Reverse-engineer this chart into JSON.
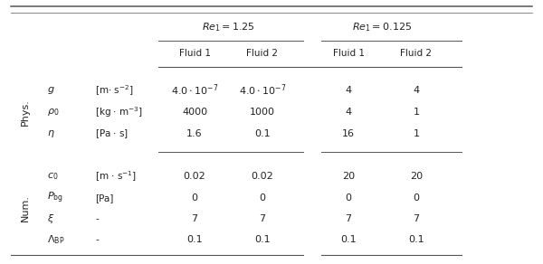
{
  "re1_header": "$\\mathit{Re}_1 = 1.25$",
  "re2_header": "$\\mathit{Re}_1 = 0.125$",
  "fluid_headers": [
    "Fluid 1",
    "Fluid 2",
    "Fluid 1",
    "Fluid 2"
  ],
  "phys_label": "Phys.",
  "num_label": "Num.",
  "phys_rows": [
    [
      "$g$",
      "[m$\\cdot$ s$^{-2}$]",
      "$4.0 \\cdot 10^{-7}$",
      "$4.0 \\cdot 10^{-7}$",
      "4",
      "4"
    ],
    [
      "$\\rho_0$",
      "[kg $\\cdot$ m$^{-3}$]",
      "4000",
      "1000",
      "4",
      "1"
    ],
    [
      "$\\eta$",
      "[Pa $\\cdot$ s]",
      "1.6",
      "0.1",
      "16",
      "1"
    ]
  ],
  "num_rows": [
    [
      "$c_0$",
      "[m $\\cdot$ s$^{-1}$]",
      "0.02",
      "0.02",
      "20",
      "20"
    ],
    [
      "$P_{\\rm bg}$",
      "[Pa]",
      "0",
      "0",
      "0",
      "0"
    ],
    [
      "$\\xi$",
      "-",
      "7",
      "7",
      "7",
      "7"
    ],
    [
      "$\\Lambda_{\\rm BP}$",
      "-",
      "0.1",
      "0.1",
      "0.1",
      "0.1"
    ]
  ]
}
